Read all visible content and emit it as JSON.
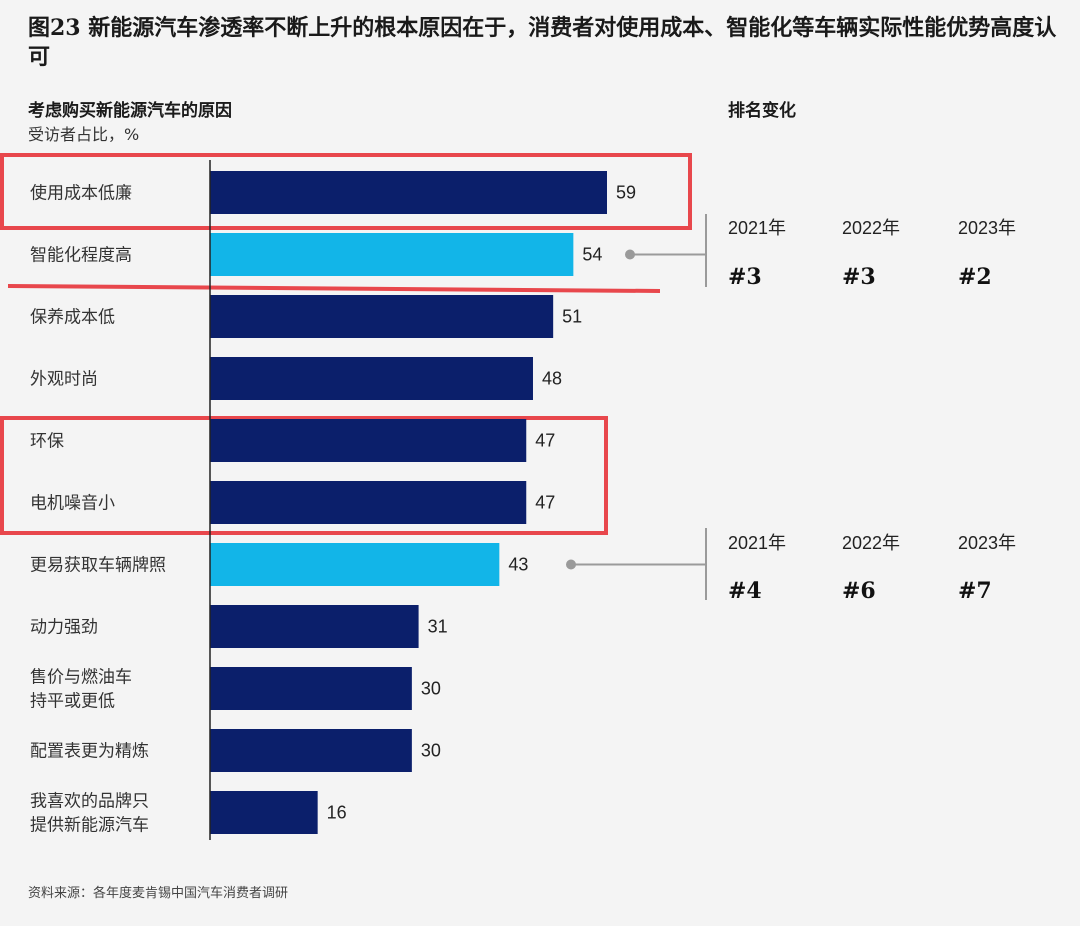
{
  "title": "图23 新能源汽车渗透率不断上升的根本原因在于，消费者对使用成本、智能化等车辆实际性能优势高度认可",
  "left_heading": "考虑购买新能源汽车的原因",
  "left_subheading": "受访者占比，%",
  "right_heading": "排名变化",
  "source": "资料来源：各年度麦肯锡中国汽车消费者调研",
  "colors": {
    "dark_bar": "#0b1f6b",
    "light_bar": "#12b5e8",
    "highlight_box": "#e8474c",
    "connector": "#9a9a9a",
    "axis": "#222222"
  },
  "chart_data": {
    "type": "bar",
    "orientation": "horizontal",
    "categories": [
      "使用成本低廉",
      "智能化程度高",
      "保养成本低",
      "外观时尚",
      "环保",
      "电机噪音小",
      "更易获取车辆牌照",
      "动力强劲",
      "售价与燃油车持平或更低",
      "配置表更为精炼",
      "我喜欢的品牌只提供新能源汽车"
    ],
    "category_lines": [
      [
        "使用成本低廉"
      ],
      [
        "智能化程度高"
      ],
      [
        "保养成本低"
      ],
      [
        "外观时尚"
      ],
      [
        "环保"
      ],
      [
        "电机噪音小"
      ],
      [
        "更易获取车辆牌照"
      ],
      [
        "动力强劲"
      ],
      [
        "售价与燃油车",
        "持平或更低"
      ],
      [
        "配置表更为精炼"
      ],
      [
        "我喜欢的品牌只",
        "提供新能源汽车"
      ]
    ],
    "values": [
      59,
      54,
      51,
      48,
      47,
      47,
      43,
      31,
      30,
      30,
      16
    ],
    "highlighted": [
      false,
      true,
      false,
      false,
      false,
      false,
      true,
      false,
      false,
      false,
      false
    ],
    "xlim": [
      0,
      60
    ],
    "rank_changes": [
      {
        "category": "智能化程度高",
        "years": [
          "2021年",
          "2022年",
          "2023年"
        ],
        "ranks": [
          "#3",
          "#3",
          "#2"
        ]
      },
      {
        "category": "更易获取车辆牌照",
        "years": [
          "2021年",
          "2022年",
          "2023年"
        ],
        "ranks": [
          "#4",
          "#6",
          "#7"
        ]
      }
    ]
  }
}
